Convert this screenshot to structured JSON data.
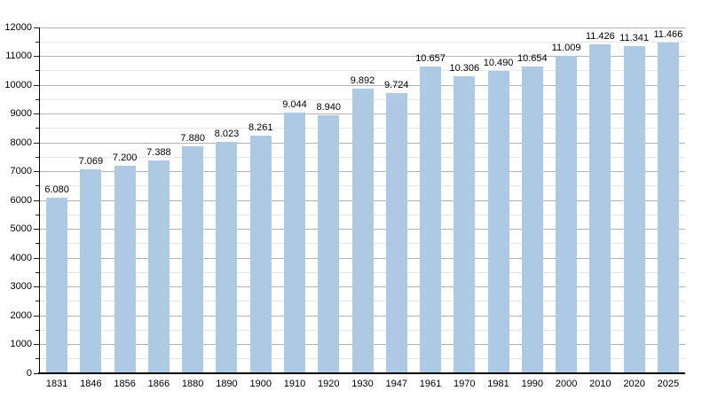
{
  "chart_data": {
    "type": "bar",
    "title": "",
    "xlabel": "",
    "ylabel": "",
    "categories": [
      "1831",
      "1846",
      "1856",
      "1866",
      "1880",
      "1890",
      "1900",
      "1910",
      "1920",
      "1930",
      "1947",
      "1961",
      "1970",
      "1981",
      "1990",
      "2000",
      "2010",
      "2020",
      "2025"
    ],
    "values": [
      6080,
      7069,
      7200,
      7388,
      7880,
      8023,
      8261,
      9044,
      8940,
      9892,
      9724,
      10657,
      10306,
      10490,
      10654,
      11009,
      11426,
      11341,
      11466
    ],
    "value_labels": [
      "6.080",
      "7.069",
      "7.200",
      "7.388",
      "7.880",
      "8.023",
      "8.261",
      "9.044",
      "8.940",
      "9.892",
      "9.724",
      "10.657",
      "10.306",
      "10.490",
      "10.654",
      "11.009",
      "11.426",
      "11.341",
      "11.466"
    ],
    "ylim": [
      0,
      12000
    ],
    "y_major_step": 1000,
    "y_minor_step": 500,
    "y_tick_labels": [
      "0",
      "1000",
      "2000",
      "3000",
      "4000",
      "5000",
      "6000",
      "7000",
      "8000",
      "9000",
      "10000",
      "11000",
      "12000"
    ],
    "grid": "horizontal, major and minor lines",
    "legend": "none",
    "bar_color": "#adc9e3",
    "grid_major_color": "#b3b3b3",
    "grid_minor_color": "#e6e6e6",
    "axis_color": "#000000",
    "text_color": "#000000"
  }
}
